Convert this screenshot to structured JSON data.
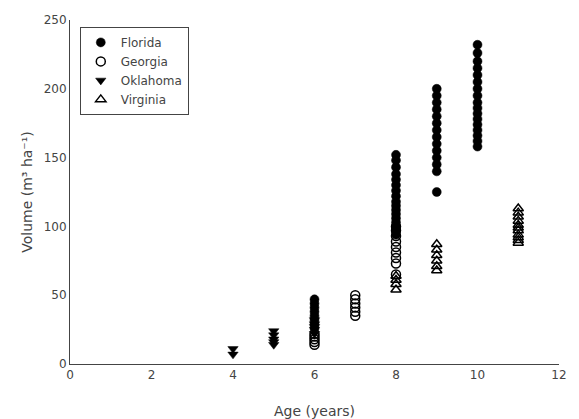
{
  "chart_data": {
    "type": "scatter",
    "xlabel": "Age (years)",
    "ylabel": "Volume (m³ ha⁻¹)",
    "xlim": [
      0,
      12
    ],
    "ylim": [
      0,
      250
    ],
    "xticks": [
      0,
      2,
      4,
      6,
      8,
      10,
      12
    ],
    "yticks": [
      0,
      50,
      100,
      150,
      200,
      250
    ],
    "grid": false,
    "legend": "upper left",
    "series": [
      {
        "name": "Florida",
        "color": "#000000",
        "marker": "circle",
        "x": [
          6,
          6,
          6,
          6,
          6,
          6,
          6,
          6,
          8,
          8,
          8,
          8,
          8,
          8,
          8,
          8,
          8,
          8,
          8,
          8,
          8,
          8,
          8,
          8,
          8,
          9,
          9,
          9,
          9,
          9,
          9,
          9,
          9,
          9,
          9,
          9,
          9,
          9,
          9,
          10,
          10,
          10,
          10,
          10,
          10,
          10,
          10,
          10,
          10,
          10,
          10,
          10,
          10,
          10,
          10,
          10
        ],
        "values": [
          47,
          44,
          41,
          38,
          35,
          32,
          29,
          26,
          152,
          148,
          143,
          138,
          134,
          130,
          126,
          122,
          118,
          115,
          112,
          109,
          106,
          103,
          100,
          97,
          94,
          200,
          195,
          190,
          185,
          180,
          175,
          170,
          165,
          160,
          155,
          150,
          145,
          140,
          125,
          232,
          226,
          220,
          215,
          210,
          205,
          200,
          195,
          190,
          186,
          182,
          178,
          174,
          170,
          166,
          162,
          158
        ]
      },
      {
        "name": "Georgia",
        "color": "#000000",
        "marker": "circle-open",
        "x": [
          6,
          6,
          6,
          6,
          6,
          7,
          7,
          7,
          7,
          7,
          7,
          8,
          8,
          8,
          8,
          8,
          8,
          8,
          8,
          8
        ],
        "values": [
          22,
          20,
          18,
          16,
          14,
          50,
          47,
          44,
          41,
          38,
          35,
          100,
          97,
          93,
          89,
          85,
          81,
          77,
          73,
          65
        ]
      },
      {
        "name": "Oklahoma",
        "color": "#000000",
        "marker": "triangle-down",
        "x": [
          4,
          4,
          5,
          5,
          5,
          5,
          5,
          6,
          6,
          6,
          6,
          6
        ],
        "values": [
          11,
          7,
          24,
          21,
          18,
          16,
          14,
          32,
          29,
          27,
          25,
          22
        ]
      },
      {
        "name": "Virginia",
        "color": "#000000",
        "marker": "triangle-up-open",
        "x": [
          8,
          8,
          8,
          8,
          9,
          9,
          9,
          9,
          9,
          9,
          11,
          11,
          11,
          11,
          11,
          11,
          11,
          11,
          11,
          11,
          11
        ],
        "values": [
          64,
          61,
          58,
          54,
          87,
          83,
          79,
          75,
          71,
          68,
          113,
          110,
          107,
          104,
          101,
          99,
          97,
          94,
          92,
          90,
          88
        ]
      }
    ]
  }
}
